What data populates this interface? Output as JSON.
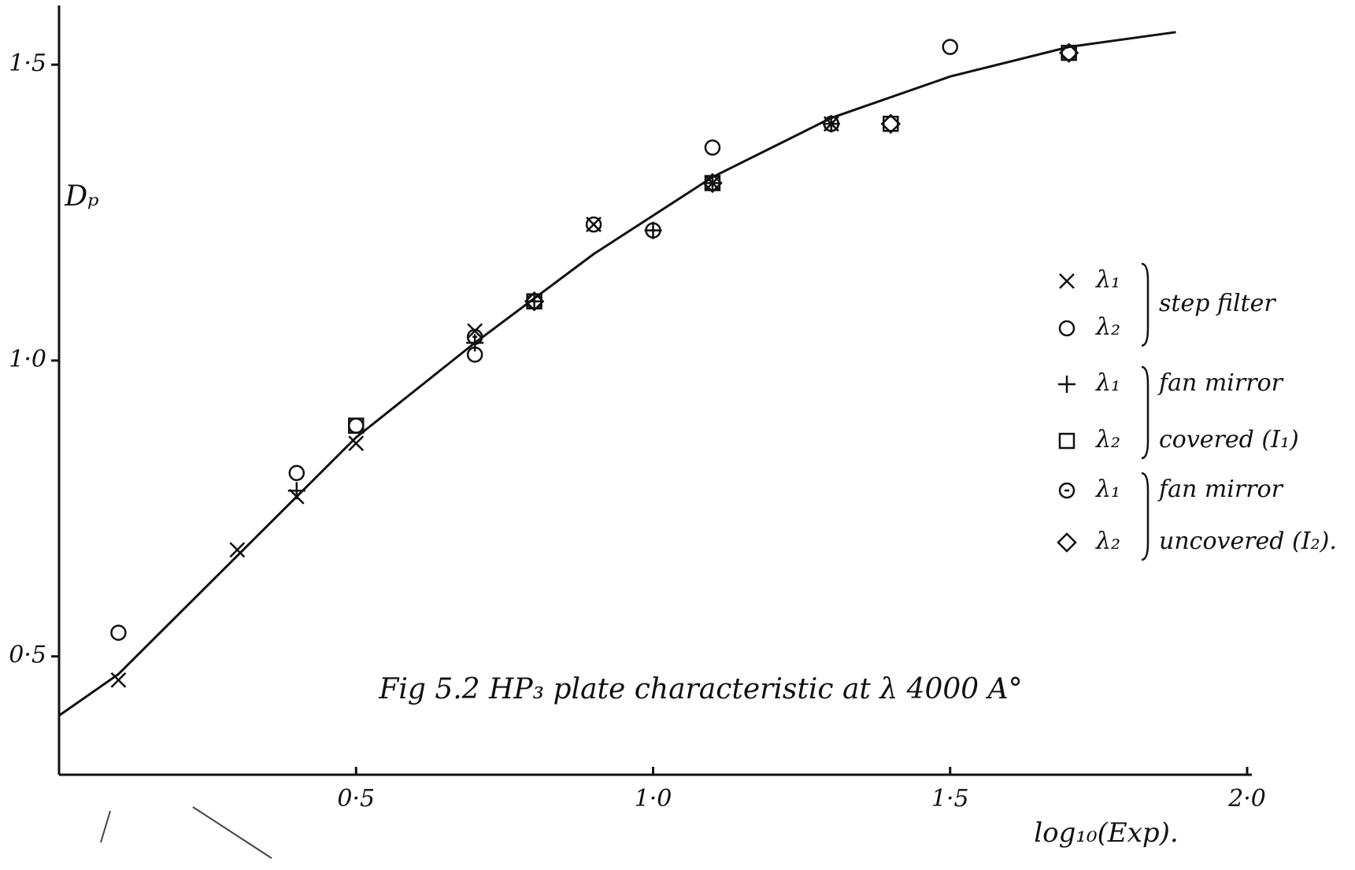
{
  "chart_data": {
    "type": "scatter",
    "title": "Fig 5.2 HP₃ plate characteristic at λ 4000 A°",
    "x_label": "log₁₀(Exp).",
    "y_label": "Dₚ",
    "xlim": [
      0,
      2.0
    ],
    "ylim": [
      0.3,
      1.6
    ],
    "xticks": [
      {
        "value": 0.5,
        "label": "0·5"
      },
      {
        "value": 1.0,
        "label": "1·0"
      },
      {
        "value": 1.5,
        "label": "1·5"
      },
      {
        "value": 2.0,
        "label": "2·0"
      }
    ],
    "yticks": [
      {
        "value": 0.5,
        "label": "0·5"
      },
      {
        "value": 1.0,
        "label": "1·0"
      },
      {
        "value": 1.5,
        "label": "1·5"
      }
    ],
    "curve": {
      "color": "#111111",
      "x": [
        0,
        0.1,
        0.3,
        0.5,
        0.7,
        0.9,
        1.1,
        1.3,
        1.5,
        1.7,
        1.88
      ],
      "values": [
        0.4,
        0.47,
        0.67,
        0.87,
        1.03,
        1.18,
        1.31,
        1.41,
        1.48,
        1.53,
        1.555
      ]
    },
    "groups": [
      {
        "label": [
          "step filter"
        ],
        "series": [
          {
            "name": "λ₁",
            "marker": "x",
            "color": "#111111",
            "x": [
              0.1,
              0.3,
              0.4,
              0.5,
              0.7,
              0.9,
              1.1,
              1.3
            ],
            "values": [
              0.46,
              0.68,
              0.77,
              0.86,
              1.05,
              1.23,
              1.3,
              1.4
            ]
          },
          {
            "name": "λ₂",
            "marker": "o",
            "color": "#111111",
            "x": [
              0.1,
              0.4,
              0.5,
              0.7,
              0.9,
              1.1,
              1.3,
              1.5,
              1.7
            ],
            "values": [
              0.54,
              0.81,
              0.89,
              1.01,
              1.23,
              1.36,
              1.4,
              1.53,
              1.52
            ]
          }
        ]
      },
      {
        "label": [
          "fan mirror",
          "covered (I₁)"
        ],
        "series": [
          {
            "name": "λ₁",
            "marker": "+",
            "color": "#111111",
            "x": [
              0.4,
              0.7,
              0.8,
              1.0,
              1.1,
              1.3
            ],
            "values": [
              0.78,
              1.03,
              1.1,
              1.22,
              1.3,
              1.4
            ]
          },
          {
            "name": "λ₂",
            "marker": "square",
            "color": "#111111",
            "x": [
              0.5,
              0.8,
              1.1,
              1.4,
              1.7
            ],
            "values": [
              0.89,
              1.1,
              1.3,
              1.4,
              1.52
            ]
          }
        ]
      },
      {
        "label": [
          "fan mirror",
          "uncovered (I₂)."
        ],
        "series": [
          {
            "name": "λ₁",
            "marker": "dot",
            "color": "#111111",
            "x": [
              0.7,
              0.8,
              1.0,
              1.3
            ],
            "values": [
              1.04,
              1.1,
              1.22,
              1.4
            ]
          },
          {
            "name": "λ₂",
            "marker": "diamond",
            "color": "#111111",
            "x": [
              0.8,
              1.1,
              1.4,
              1.7
            ],
            "values": [
              1.1,
              1.3,
              1.4,
              1.52
            ]
          }
        ]
      }
    ]
  }
}
